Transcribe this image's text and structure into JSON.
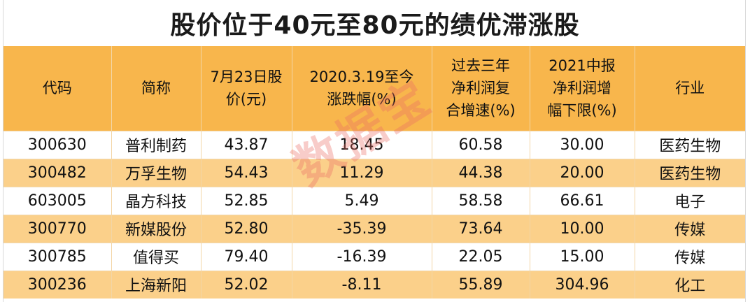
{
  "title": "股价位于40元至80元的绩优滞涨股",
  "watermark": "数据宝",
  "headers": [
    [
      "代码"
    ],
    [
      "简称"
    ],
    [
      "7月23日股",
      "价(元)"
    ],
    [
      "2020.3.19至今",
      "涨跌幅(%)"
    ],
    [
      "过去三年",
      "净利润复",
      "合增速(%)"
    ],
    [
      "2021中报",
      "净利润增",
      "幅下限(%)"
    ],
    [
      "行业"
    ]
  ],
  "rows": [
    [
      "300630",
      "普利制药",
      "43.87",
      "18.45",
      "60.58",
      "30.00",
      "医药生物"
    ],
    [
      "300482",
      "万孚生物",
      "54.43",
      "11.29",
      "44.38",
      "20.00",
      "医药生物"
    ],
    [
      "603005",
      "晶方科技",
      "52.85",
      "5.49",
      "58.58",
      "66.61",
      "电子"
    ],
    [
      "300770",
      "新媒股份",
      "52.80",
      "-35.39",
      "73.64",
      "10.00",
      "传媒"
    ],
    [
      "300785",
      "值得买",
      "79.40",
      "-16.39",
      "22.05",
      "15.00",
      "传媒"
    ],
    [
      "300236",
      "上海新阳",
      "52.02",
      "-8.11",
      "55.89",
      "304.96",
      "化工"
    ]
  ],
  "colors": {
    "header_bg": "#f8b64c",
    "stripe_bg": "#fbd08a",
    "watermark": "#eb6e64"
  }
}
